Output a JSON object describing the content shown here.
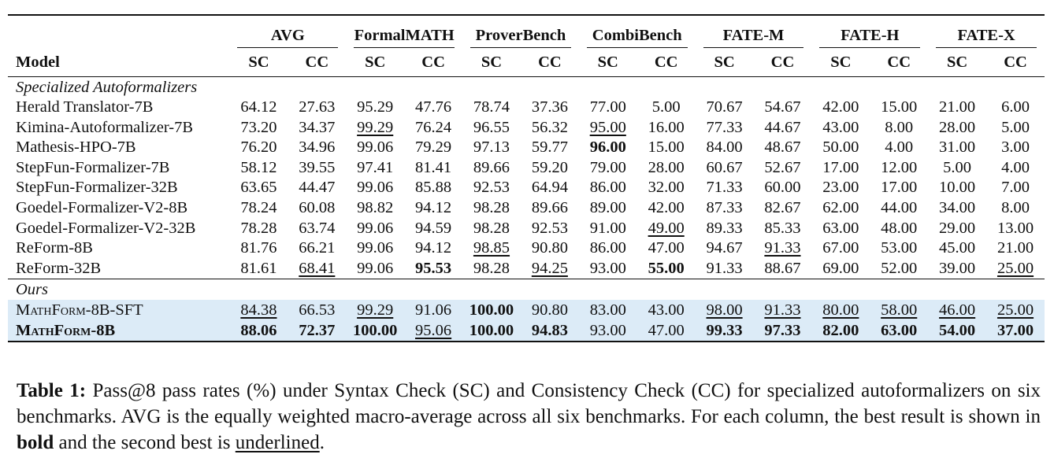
{
  "table": {
    "model_header": "Model",
    "groups": [
      "AVG",
      "FormalMATH",
      "ProverBench",
      "CombiBench",
      "FATE-M",
      "FATE-H",
      "FATE-X"
    ],
    "sub": [
      "SC",
      "CC"
    ],
    "sections": [
      {
        "title": "Specialized Autoformalizers",
        "rows": [
          {
            "model": "Herald Translator-7B",
            "values": [
              "64.12",
              "27.63",
              "95.29",
              "47.76",
              "78.74",
              "37.36",
              "77.00",
              "5.00",
              "70.67",
              "54.67",
              "42.00",
              "15.00",
              "21.00",
              "6.00"
            ],
            "bold": [],
            "underline": []
          },
          {
            "model": "Kimina-Autoformalizer-7B",
            "values": [
              "73.20",
              "34.37",
              "99.29",
              "76.24",
              "96.55",
              "56.32",
              "95.00",
              "16.00",
              "77.33",
              "44.67",
              "43.00",
              "8.00",
              "28.00",
              "5.00"
            ],
            "bold": [],
            "underline": [
              2,
              6
            ]
          },
          {
            "model": "Mathesis-HPO-7B",
            "values": [
              "76.20",
              "34.96",
              "99.06",
              "79.29",
              "97.13",
              "59.77",
              "96.00",
              "15.00",
              "84.00",
              "48.67",
              "50.00",
              "4.00",
              "31.00",
              "3.00"
            ],
            "bold": [
              6
            ],
            "underline": []
          },
          {
            "model": "StepFun-Formalizer-7B",
            "values": [
              "58.12",
              "39.55",
              "97.41",
              "81.41",
              "89.66",
              "59.20",
              "79.00",
              "28.00",
              "60.67",
              "52.67",
              "17.00",
              "12.00",
              "5.00",
              "4.00"
            ],
            "bold": [],
            "underline": []
          },
          {
            "model": "StepFun-Formalizer-32B",
            "values": [
              "63.65",
              "44.47",
              "99.06",
              "85.88",
              "92.53",
              "64.94",
              "86.00",
              "32.00",
              "71.33",
              "60.00",
              "23.00",
              "17.00",
              "10.00",
              "7.00"
            ],
            "bold": [],
            "underline": []
          },
          {
            "model": "Goedel-Formalizer-V2-8B",
            "values": [
              "78.24",
              "60.08",
              "98.82",
              "94.12",
              "98.28",
              "89.66",
              "89.00",
              "42.00",
              "87.33",
              "82.67",
              "62.00",
              "44.00",
              "34.00",
              "8.00"
            ],
            "bold": [],
            "underline": []
          },
          {
            "model": "Goedel-Formalizer-V2-32B",
            "values": [
              "78.28",
              "63.74",
              "99.06",
              "94.59",
              "98.28",
              "92.53",
              "91.00",
              "49.00",
              "89.33",
              "85.33",
              "63.00",
              "48.00",
              "29.00",
              "13.00"
            ],
            "bold": [],
            "underline": [
              7
            ]
          },
          {
            "model": "ReForm-8B",
            "values": [
              "81.76",
              "66.21",
              "99.06",
              "94.12",
              "98.85",
              "90.80",
              "86.00",
              "47.00",
              "94.67",
              "91.33",
              "67.00",
              "53.00",
              "45.00",
              "21.00"
            ],
            "bold": [],
            "underline": [
              4,
              9
            ]
          },
          {
            "model": "ReForm-32B",
            "values": [
              "81.61",
              "68.41",
              "99.06",
              "95.53",
              "98.28",
              "94.25",
              "93.00",
              "55.00",
              "91.33",
              "88.67",
              "69.00",
              "52.00",
              "39.00",
              "25.00"
            ],
            "bold": [
              3,
              7
            ],
            "underline": [
              1,
              5,
              13
            ]
          }
        ]
      },
      {
        "title": "Ours",
        "rows": [
          {
            "model": "MathForm-8B-SFT",
            "values": [
              "84.38",
              "66.53",
              "99.29",
              "91.06",
              "100.00",
              "90.80",
              "83.00",
              "43.00",
              "98.00",
              "91.33",
              "80.00",
              "58.00",
              "46.00",
              "25.00"
            ],
            "bold": [
              4
            ],
            "underline": [
              0,
              2,
              8,
              9,
              10,
              11,
              12,
              13
            ],
            "name_bold": false
          },
          {
            "model": "MathForm-8B",
            "values": [
              "88.06",
              "72.37",
              "100.00",
              "95.06",
              "100.00",
              "94.83",
              "93.00",
              "47.00",
              "99.33",
              "97.33",
              "82.00",
              "63.00",
              "54.00",
              "37.00"
            ],
            "bold": [
              0,
              1,
              2,
              4,
              5,
              8,
              9,
              10,
              11,
              12,
              13
            ],
            "underline": [
              3
            ],
            "name_bold": true
          }
        ]
      }
    ]
  },
  "caption": {
    "label": "Table 1:",
    "text1": " Pass@8 pass rates (%) under Syntax Check (SC) and Consistency Check (CC) for specialized autoformalizers on six benchmarks. AVG is the equally weighted macro-average across all six benchmarks. For each column, the best result is shown in ",
    "bold_word": "bold",
    "text2": " and the second best is ",
    "underline_word": "underlined",
    "text3": "."
  }
}
